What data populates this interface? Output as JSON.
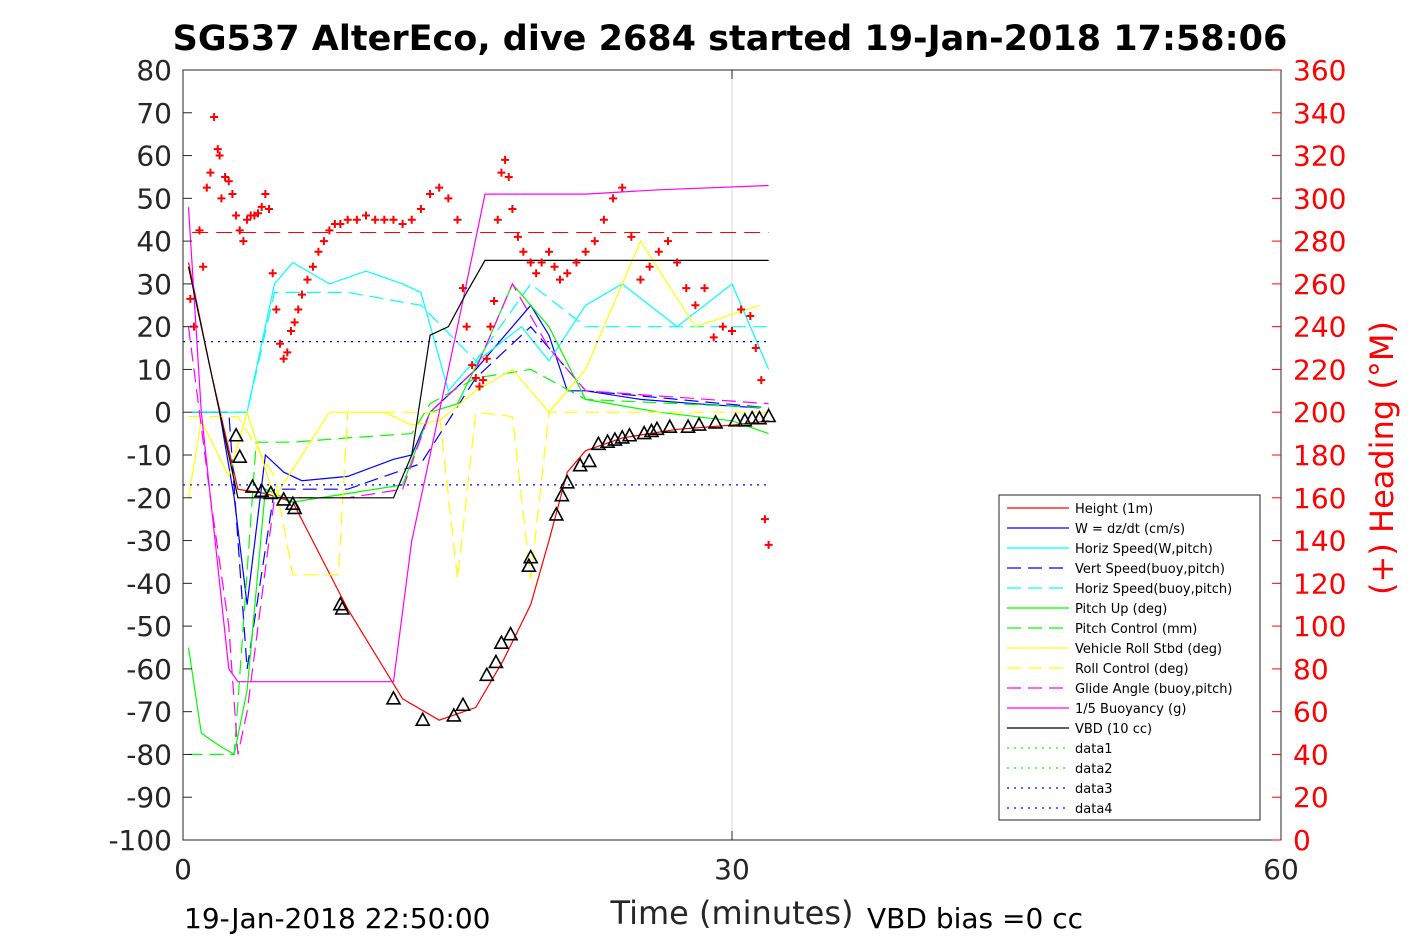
{
  "chart_data": {
    "type": "line",
    "title": "SG537 AlterEco, dive 2684 started 19-Jan-2018 17:58:06",
    "xlabel": "Time (minutes)",
    "ylabel": "",
    "y2label": "(+) Heading (°M)",
    "xlim": [
      0,
      60
    ],
    "ylim": [
      -100,
      80
    ],
    "y2lim": [
      0,
      360
    ],
    "xticks": [
      "0",
      "30",
      "60"
    ],
    "yticks": [
      "80",
      "70",
      "60",
      "50",
      "40",
      "30",
      "20",
      "10",
      "0",
      "-10",
      "-20",
      "-30",
      "-40",
      "-50",
      "-60",
      "-70",
      "-80",
      "-90",
      "-100"
    ],
    "y2ticks": [
      "360",
      "340",
      "320",
      "300",
      "280",
      "260",
      "240",
      "220",
      "200",
      "180",
      "160",
      "140",
      "120",
      "100",
      "80",
      "60",
      "40",
      "20",
      "0"
    ],
    "grid_x_at": [
      30
    ],
    "legend_position": "lower-right",
    "footer_left": "19-Jan-2018 22:50:00",
    "footer_right": "VBD bias =0 cc",
    "series": [
      {
        "name": "Height (1m)",
        "color": "#ff0000",
        "style": "solid",
        "x": [
          0.3,
          1.5,
          3.0,
          4.5,
          6.0,
          9.0,
          12.0,
          14.0,
          16.0,
          17.5,
          19.0,
          20.0,
          21.0,
          22.0,
          24.0,
          27.0,
          30.0,
          32.0
        ],
        "y": [
          35,
          10,
          -18,
          -19,
          -21,
          -46,
          -67,
          -72,
          -69,
          -58,
          -45,
          -30,
          -14,
          -9,
          -6,
          -4,
          -3,
          -2
        ]
      },
      {
        "name": "W = dz/dt (cm/s)",
        "color": "#0000ff",
        "style": "solid",
        "x": [
          0.5,
          2.0,
          2.8,
          3.5,
          4.5,
          5.5,
          6.5,
          9.0,
          11.5,
          12.5,
          13.5,
          16.0,
          17.0,
          18.0,
          19.0,
          20.0,
          21.0,
          22.0,
          25.0,
          28.0,
          31.5
        ],
        "y": [
          0,
          0,
          -20,
          -45,
          -10,
          -14,
          -16,
          -15,
          -11,
          -10,
          0,
          10,
          15,
          20,
          25,
          18,
          5,
          5,
          3,
          2,
          1
        ]
      },
      {
        "name": "Horiz Speed(W,pitch)",
        "color": "#00ffff",
        "style": "solid",
        "x": [
          0.5,
          2.5,
          3.5,
          4.0,
          5.0,
          6.0,
          8.0,
          10.0,
          12.0,
          13.0,
          14.5,
          15.5,
          17.0,
          18.5,
          20.0,
          22.0,
          24.0,
          27.0,
          30.0,
          32.0
        ],
        "y": [
          0,
          0,
          0,
          10,
          30,
          35,
          30,
          33,
          30,
          28,
          5,
          10,
          15,
          20,
          12,
          25,
          30,
          20,
          30,
          10
        ]
      },
      {
        "name": "Vert Speed(buoy,pitch)",
        "color": "#0000ff",
        "style": "dashed",
        "x": [
          0.5,
          2.5,
          3.5,
          5.0,
          9.0,
          13.0,
          16.0,
          19.0,
          22.0,
          32.0
        ],
        "y": [
          0,
          0,
          -60,
          -18,
          -18,
          -12,
          8,
          20,
          5,
          1
        ]
      },
      {
        "name": "Horiz Speed(buoy,pitch)",
        "color": "#00ffff",
        "style": "dashed",
        "x": [
          0.5,
          3.5,
          5.0,
          9.0,
          13.0,
          16.0,
          19.0,
          22.0,
          32.0
        ],
        "y": [
          0,
          0,
          28,
          28,
          25,
          12,
          30,
          20,
          20
        ]
      },
      {
        "name": "Pitch Up (deg)",
        "color": "#00ff00",
        "style": "solid",
        "x": [
          0.3,
          1.0,
          2.0,
          2.8,
          3.5,
          4.5,
          6.0,
          9.0,
          12.0,
          13.5,
          15.0,
          16.5,
          18.0,
          20.0,
          22.0,
          26.0,
          30.0,
          32.0
        ],
        "y": [
          -55,
          -75,
          -78,
          -80,
          -65,
          -18,
          -21,
          -19,
          -17,
          0,
          2,
          15,
          30,
          20,
          3,
          0,
          -2,
          -5
        ]
      },
      {
        "name": "Pitch Control (mm)",
        "color": "#00ff00",
        "style": "dashed",
        "x": [
          0.3,
          2.8,
          4.0,
          6.0,
          9.0,
          12.5,
          13.5,
          16.0,
          19.0,
          22.0,
          32.0
        ],
        "y": [
          -80,
          -80,
          -7,
          -7,
          -6,
          -5,
          2,
          8,
          10,
          3,
          1
        ]
      },
      {
        "name": "Vehicle Roll Stbd (deg)",
        "color": "#ffff00",
        "style": "solid",
        "x": [
          0.3,
          1.0,
          2.5,
          3.5,
          5.0,
          8.0,
          11.0,
          12.5,
          14.0,
          16.0,
          18.0,
          20.0,
          22.0,
          25.0,
          28.0,
          31.5
        ],
        "y": [
          -20,
          -2,
          -15,
          0,
          -20,
          0,
          0,
          -3,
          -2,
          5,
          10,
          0,
          10,
          40,
          20,
          25
        ]
      },
      {
        "name": "Roll Control (deg)",
        "color": "#ffff00",
        "style": "dashed",
        "x": [
          0.3,
          3.0,
          5.0,
          6.0,
          8.5,
          9.0,
          14.0,
          15.0,
          16.0,
          18.0,
          19.0,
          20.0,
          21.0,
          23.0,
          32.0
        ],
        "y": [
          -1,
          -1,
          -15,
          -38,
          -38,
          0,
          0,
          -39,
          0,
          -1,
          -39,
          0,
          0,
          0,
          0
        ]
      },
      {
        "name": "Glide Angle (buoy,pitch)",
        "color": "#ff00ff",
        "style": "dashed",
        "x": [
          0.3,
          1.5,
          2.5,
          3.0,
          3.5,
          5.0,
          9.0,
          12.0,
          13.5,
          16.0,
          18.0,
          20.0,
          22.0,
          32.0
        ],
        "y": [
          20,
          -20,
          -50,
          -80,
          -70,
          -20,
          -20,
          -18,
          0,
          10,
          30,
          15,
          5,
          2
        ]
      },
      {
        "name": "1/5 Buoyancy (g)",
        "color": "#ff00ff",
        "style": "solid",
        "x": [
          0.3,
          1.0,
          2.5,
          3.0,
          4.0,
          8.0,
          11.5,
          12.5,
          13.5,
          15.0,
          16.5,
          18.0,
          22.0,
          26.0,
          32.0
        ],
        "y": [
          48,
          0,
          -60,
          -63,
          -63,
          -63,
          -63,
          -30,
          -10,
          20,
          51,
          51,
          51,
          52,
          53
        ]
      },
      {
        "name": "VBD (10 cc)",
        "color": "#000000",
        "style": "solid",
        "x": [
          0.3,
          3.0,
          4.0,
          8.0,
          11.5,
          12.5,
          13.5,
          14.5,
          15.5,
          16.5,
          18.0,
          22.0,
          26.0,
          32.0
        ],
        "y": [
          34,
          -20,
          -20,
          -20,
          -20,
          -10,
          18,
          20,
          28,
          35.5,
          35.5,
          35.5,
          35.5,
          35.5
        ]
      },
      {
        "name": "data1",
        "color": "#00ff00",
        "style": "dotted",
        "x": [],
        "y": []
      },
      {
        "name": "data2",
        "color": "#00ff00",
        "style": "dotted",
        "x": [],
        "y": []
      },
      {
        "name": "data3",
        "color": "#0000ff",
        "style": "dotted",
        "x": [
          0,
          32
        ],
        "y": [
          16.5,
          16.5
        ]
      },
      {
        "name": "data4",
        "color": "#0000ff",
        "style": "dotted",
        "x": [
          0,
          32
        ],
        "y": [
          -17,
          -17
        ]
      }
    ],
    "reference_line": {
      "color": "#ff0000",
      "style": "dashed",
      "y": 42,
      "x": [
        0.5,
        32
      ]
    },
    "heading_points": {
      "axis": "right",
      "color": "#ff0000",
      "marker": "+",
      "x": [
        0.4,
        0.6,
        0.9,
        1.1,
        1.3,
        1.5,
        1.7,
        1.9,
        2.0,
        2.1,
        2.3,
        2.5,
        2.7,
        2.9,
        3.1,
        3.3,
        3.5,
        3.7,
        3.9,
        4.1,
        4.3,
        4.5,
        4.7,
        4.9,
        5.1,
        5.3,
        5.5,
        5.7,
        5.9,
        6.1,
        6.3,
        6.5,
        6.8,
        7.1,
        7.4,
        7.7,
        8.0,
        8.3,
        8.6,
        9.0,
        9.5,
        10.0,
        10.5,
        11.0,
        11.5,
        12.0,
        12.5,
        13.0,
        13.5,
        14.0,
        14.5,
        15.0,
        15.3,
        15.5,
        15.8,
        16.0,
        16.2,
        16.4,
        16.6,
        16.8,
        17.0,
        17.2,
        17.4,
        17.6,
        17.8,
        18.0,
        18.3,
        18.6,
        19.0,
        19.3,
        19.6,
        20.0,
        20.3,
        20.6,
        21.0,
        21.5,
        22.0,
        22.5,
        23.0,
        23.5,
        24.0,
        24.5,
        25.0,
        25.5,
        26.0,
        26.5,
        27.0,
        27.5,
        28.0,
        28.5,
        29.0,
        29.5,
        30.0,
        30.5,
        31.0,
        31.3,
        31.6,
        31.8,
        32.0
      ],
      "y": [
        253,
        240,
        285,
        268,
        305,
        312,
        338,
        323,
        320,
        300,
        310,
        308,
        302,
        292,
        285,
        280,
        290,
        292,
        292,
        293,
        296,
        302,
        295,
        265,
        248,
        232,
        225,
        228,
        238,
        242,
        248,
        255,
        262,
        268,
        275,
        280,
        285,
        288,
        288,
        290,
        290,
        292,
        290,
        290,
        290,
        288,
        290,
        295,
        302,
        305,
        300,
        290,
        258,
        240,
        222,
        216,
        212,
        215,
        225,
        240,
        252,
        290,
        312,
        318,
        310,
        295,
        282,
        275,
        270,
        265,
        270,
        275,
        268,
        262,
        265,
        270,
        275,
        280,
        290,
        300,
        305,
        282,
        262,
        268,
        275,
        280,
        270,
        258,
        250,
        258,
        235,
        240,
        238,
        248,
        245,
        230,
        215,
        150,
        138
      ]
    },
    "triangle_points": {
      "color": "#000000",
      "x": [
        2.9,
        3.1,
        3.8,
        4.3,
        4.8,
        5.5,
        6.0,
        6.1,
        8.6,
        8.7,
        11.5,
        13.1,
        14.8,
        15.3,
        16.6,
        17.1,
        17.4,
        17.9,
        18.9,
        19.0,
        20.4,
        20.7,
        21.0,
        21.7,
        22.2,
        22.7,
        23.2,
        23.6,
        24.0,
        24.4,
        25.2,
        25.6,
        25.9,
        26.6,
        27.6,
        28.2,
        29.1,
        30.2,
        30.7,
        31.1,
        31.5,
        32.0
      ],
      "y": [
        -5.5,
        -10.5,
        -17.5,
        -18.5,
        -19,
        -20.5,
        -21.5,
        -22.5,
        -45,
        -46,
        -67,
        -72,
        -71,
        -68.5,
        -61.5,
        -58.5,
        -54,
        -52,
        -36,
        -34,
        -24,
        -19.5,
        -16.5,
        -12.5,
        -11.5,
        -7.5,
        -7,
        -6.5,
        -6,
        -5.5,
        -5,
        -4.5,
        -4,
        -3.5,
        -3.5,
        -3,
        -2.5,
        -2,
        -2,
        -1.5,
        -1.5,
        -1
      ]
    }
  }
}
